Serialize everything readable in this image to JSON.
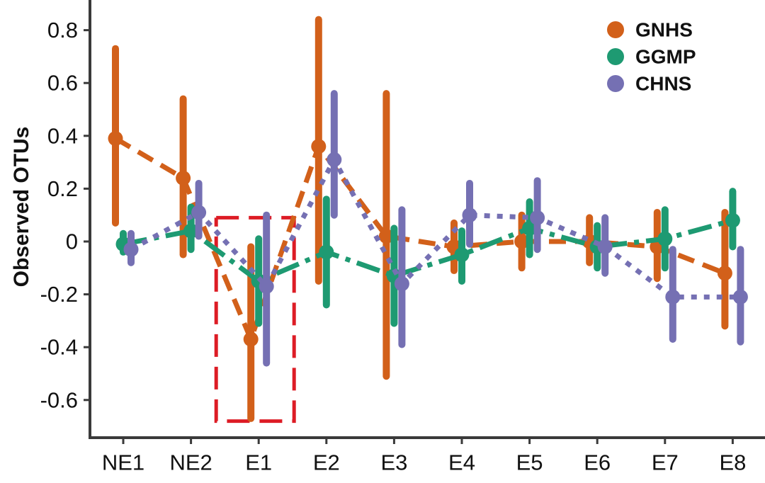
{
  "chart_data": {
    "type": "line",
    "ylabel": "Observed OTUs",
    "xlabel": "",
    "categories": [
      "NE1",
      "NE2",
      "E1",
      "E2",
      "E3",
      "E4",
      "E5",
      "E6",
      "E7",
      "E8"
    ],
    "highlighted_category": "E1",
    "highlight_color": "#dd1c25",
    "yticks": [
      "-0.6",
      "-0.4",
      "-0.2",
      "0",
      "0.2",
      "0.4",
      "0.6",
      "0.8"
    ],
    "ylim": [
      -0.75,
      0.92
    ],
    "legend_position": "top-right",
    "series": [
      {
        "name": "GNHS",
        "color": "#d2601a",
        "line_style": "dashed",
        "values": [
          0.39,
          0.24,
          -0.37,
          0.36,
          0.02,
          -0.02,
          0.0,
          0.0,
          -0.02,
          -0.12
        ],
        "ci_low": [
          0.07,
          -0.05,
          -0.67,
          -0.15,
          -0.51,
          -0.11,
          -0.1,
          -0.08,
          -0.14,
          -0.32
        ],
        "ci_high": [
          0.73,
          0.54,
          -0.02,
          0.84,
          0.56,
          0.07,
          0.1,
          0.09,
          0.11,
          0.11
        ]
      },
      {
        "name": "GGMP",
        "color": "#1e9a72",
        "line_style": "dash-dot",
        "values": [
          -0.01,
          0.04,
          -0.15,
          -0.04,
          -0.13,
          -0.05,
          0.05,
          -0.02,
          0.01,
          0.08
        ],
        "ci_low": [
          -0.04,
          -0.03,
          -0.31,
          -0.24,
          -0.31,
          -0.15,
          -0.05,
          -0.1,
          -0.1,
          -0.02
        ],
        "ci_high": [
          0.03,
          0.13,
          0.01,
          0.16,
          0.05,
          0.04,
          0.15,
          0.06,
          0.12,
          0.19
        ]
      },
      {
        "name": "CHNS",
        "color": "#7570b3",
        "line_style": "dotted",
        "values": [
          -0.03,
          0.11,
          -0.17,
          0.31,
          -0.16,
          0.1,
          0.09,
          -0.02,
          -0.21,
          -0.21
        ],
        "ci_low": [
          -0.08,
          0.02,
          -0.46,
          0.1,
          -0.39,
          -0.01,
          -0.03,
          -0.12,
          -0.37,
          -0.38
        ],
        "ci_high": [
          0.03,
          0.22,
          0.1,
          0.56,
          0.12,
          0.22,
          0.23,
          0.09,
          -0.03,
          -0.03
        ]
      }
    ]
  }
}
